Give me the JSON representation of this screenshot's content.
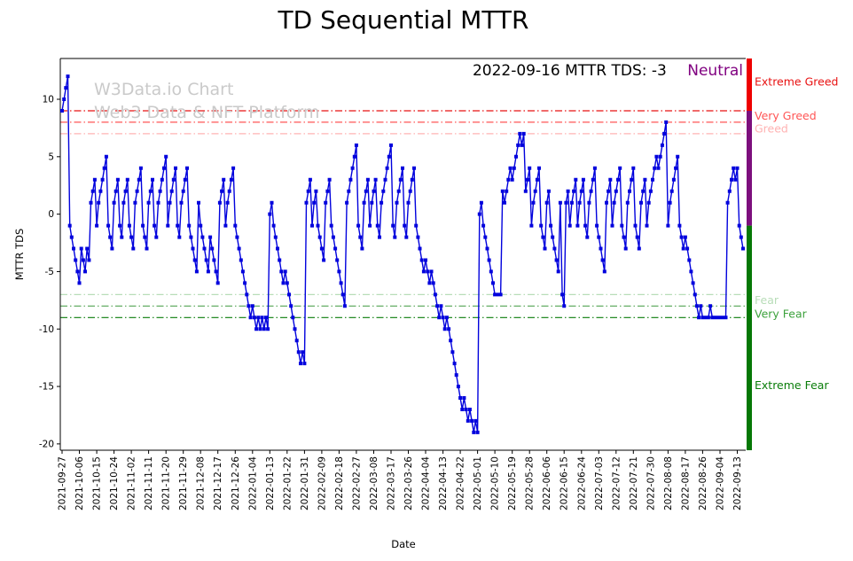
{
  "title": "TD Sequential MTTR",
  "annotation": {
    "text": "2022-09-16 MTTR TDS: -3",
    "status": "Neutral",
    "status_color": "#800080"
  },
  "watermark": {
    "line1": "W3Data.io Chart",
    "line2": "Web3 Data & NFT Platform"
  },
  "axes": {
    "xlabel": "Date",
    "ylabel": "MTTR TDS",
    "ylim": [
      -20.55,
      13.55
    ],
    "yticks": [
      10,
      5,
      0,
      -5,
      -10,
      -15,
      -20
    ],
    "xtick_step_days": 9,
    "xtick_labels": [
      "2021-09-27",
      "2021-10-06",
      "2021-10-15",
      "2021-10-24",
      "2021-11-02",
      "2021-11-11",
      "2021-11-20",
      "2021-11-29",
      "2021-12-08",
      "2021-12-17",
      "2021-12-26",
      "2022-01-04",
      "2022-01-13",
      "2022-01-22",
      "2022-01-31",
      "2022-02-09",
      "2022-02-18",
      "2022-02-27",
      "2022-03-08",
      "2022-03-17",
      "2022-03-26",
      "2022-04-04",
      "2022-04-13",
      "2022-04-22",
      "2022-05-01",
      "2022-05-10",
      "2022-05-19",
      "2022-05-28",
      "2022-06-06",
      "2022-06-15",
      "2022-06-24",
      "2022-07-03",
      "2022-07-12",
      "2022-07-21",
      "2022-07-30",
      "2022-08-08",
      "2022-08-17",
      "2022-08-26",
      "2022-09-04",
      "2022-09-13"
    ]
  },
  "zones": {
    "lines": [
      {
        "value": 9,
        "color": "#e81111"
      },
      {
        "value": 8,
        "color": "#ff5555"
      },
      {
        "value": 7,
        "color": "#ffb3b3"
      },
      {
        "value": -7,
        "color": "#b8ddb8"
      },
      {
        "value": -8,
        "color": "#52a352"
      },
      {
        "value": -9,
        "color": "#0a7d0a"
      }
    ],
    "labels": [
      {
        "text": "Extreme Greed",
        "value": 11.5,
        "color": "#e81111"
      },
      {
        "text": "Very Greed",
        "value": 8.55,
        "color": "#ff5555"
      },
      {
        "text": "Greed",
        "value": 7.4,
        "color": "#ffb3b3"
      },
      {
        "text": "Fear",
        "value": -7.5,
        "color": "#b8ddb8"
      },
      {
        "text": "Very Fear",
        "value": -8.7,
        "color": "#3da23d"
      },
      {
        "text": "Extreme Fear",
        "value": -14.9,
        "color": "#0a7d0a"
      }
    ],
    "bar_segments": [
      {
        "from": 9,
        "to": 13.55,
        "color": "#ee0000"
      },
      {
        "from": -1,
        "to": 9,
        "color": "#7d0f7d"
      },
      {
        "from": -20.55,
        "to": -1,
        "color": "#067806"
      }
    ]
  },
  "chart_data": {
    "type": "line",
    "marker": "square",
    "line_color": "#0202dd",
    "title": "TD Sequential MTTR",
    "xlabel": "Date",
    "ylabel": "MTTR TDS",
    "x_start": "2021-09-27",
    "x_end": "2022-09-16",
    "x_frequency": "daily",
    "values": [
      9,
      10,
      11,
      12,
      -1,
      -2,
      -3,
      -4,
      -5,
      -6,
      -3,
      -4,
      -5,
      -3,
      -4,
      1,
      2,
      3,
      -1,
      1,
      2,
      3,
      4,
      5,
      -1,
      -2,
      -3,
      1,
      2,
      3,
      -1,
      -2,
      1,
      2,
      3,
      -1,
      -2,
      -3,
      1,
      2,
      3,
      4,
      -1,
      -2,
      -3,
      1,
      2,
      3,
      -1,
      -2,
      1,
      2,
      3,
      4,
      5,
      -1,
      1,
      2,
      3,
      4,
      -1,
      -2,
      1,
      2,
      3,
      4,
      -1,
      -2,
      -3,
      -4,
      -5,
      1,
      -1,
      -2,
      -3,
      -4,
      -5,
      -2,
      -3,
      -4,
      -5,
      -6,
      1,
      2,
      3,
      -1,
      1,
      2,
      3,
      4,
      -1,
      -2,
      -3,
      -4,
      -5,
      -6,
      -7,
      -8,
      -9,
      -8,
      -9,
      -10,
      -9,
      -10,
      -9,
      -10,
      -9,
      -10,
      0,
      1,
      -1,
      -2,
      -3,
      -4,
      -5,
      -6,
      -5,
      -6,
      -7,
      -8,
      -9,
      -10,
      -11,
      -12,
      -13,
      -12,
      -13,
      1,
      2,
      3,
      -1,
      1,
      2,
      -1,
      -2,
      -3,
      -4,
      1,
      2,
      3,
      -1,
      -2,
      -3,
      -4,
      -5,
      -6,
      -7,
      -8,
      1,
      2,
      3,
      4,
      5,
      6,
      -1,
      -2,
      -3,
      1,
      2,
      3,
      -1,
      1,
      2,
      3,
      -1,
      -2,
      1,
      2,
      3,
      4,
      5,
      6,
      -1,
      -2,
      1,
      2,
      3,
      4,
      -1,
      -2,
      1,
      2,
      3,
      4,
      -1,
      -2,
      -3,
      -4,
      -5,
      -4,
      -5,
      -6,
      -5,
      -6,
      -7,
      -8,
      -9,
      -8,
      -9,
      -10,
      -9,
      -10,
      -11,
      -12,
      -13,
      -14,
      -15,
      -16,
      -17,
      -16,
      -17,
      -18,
      -17,
      -18,
      -19,
      -18,
      -19,
      0,
      1,
      -1,
      -2,
      -3,
      -4,
      -5,
      -6,
      -7,
      -7,
      -7,
      -7,
      2,
      1,
      2,
      3,
      4,
      3,
      4,
      5,
      6,
      7,
      6,
      7,
      2,
      3,
      4,
      -1,
      1,
      2,
      3,
      4,
      -1,
      -2,
      -3,
      1,
      2,
      -1,
      -2,
      -3,
      -4,
      -5,
      1,
      -7,
      -8,
      1,
      2,
      -1,
      1,
      2,
      3,
      -1,
      1,
      2,
      3,
      -1,
      -2,
      1,
      2,
      3,
      4,
      -1,
      -2,
      -3,
      -4,
      -5,
      1,
      2,
      3,
      -1,
      1,
      2,
      3,
      4,
      -1,
      -2,
      -3,
      1,
      2,
      3,
      4,
      -1,
      -2,
      -3,
      1,
      2,
      3,
      -1,
      1,
      2,
      3,
      4,
      5,
      4,
      5,
      6,
      7,
      8,
      -1,
      1,
      2,
      3,
      4,
      5,
      -1,
      -2,
      -3,
      -2,
      -3,
      -4,
      -5,
      -6,
      -7,
      -8,
      -9,
      -8,
      -9,
      -9,
      -9,
      -9,
      -8,
      -9,
      -9,
      -9,
      -9,
      -9,
      -9,
      -9,
      -9,
      1,
      2,
      3,
      4,
      3,
      4,
      -1,
      -2,
      -3
    ]
  }
}
